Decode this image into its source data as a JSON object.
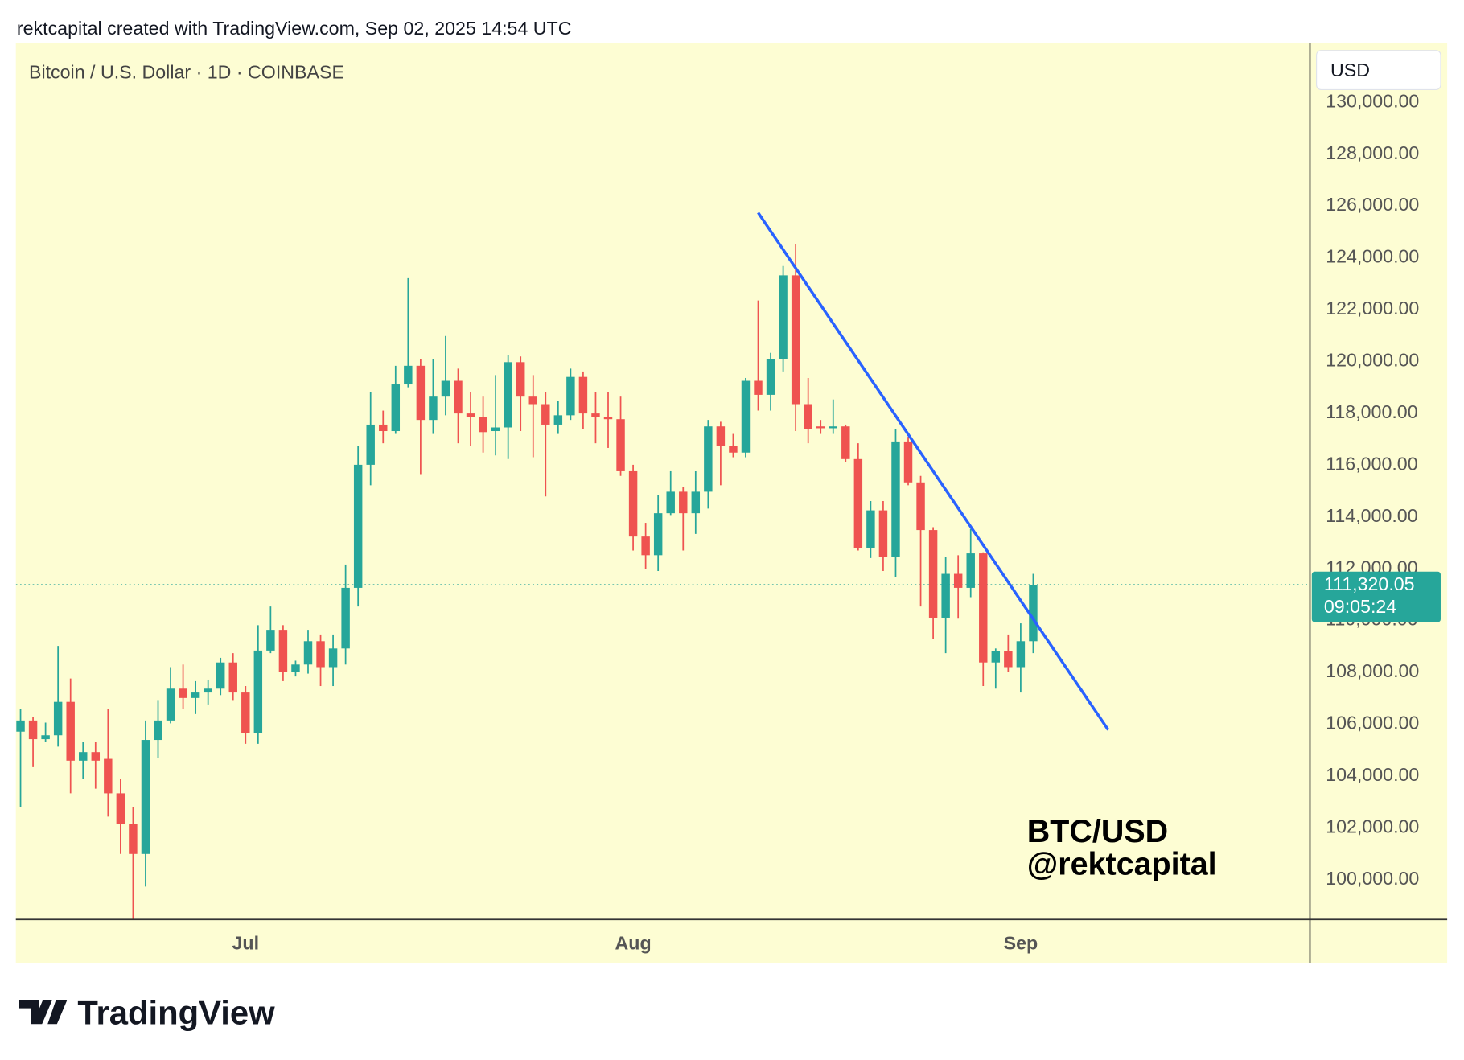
{
  "header": {
    "text": "rektcapital created with TradingView.com, Sep 02, 2025 14:54 UTC"
  },
  "footer": {
    "logo_text": "TradingView"
  },
  "chart_data": {
    "type": "candlestick",
    "title": "Bitcoin / U.S. Dollar · 1D · COINBASE",
    "currency": "USD",
    "watermark": [
      "BTC/USD",
      "@rektcapital"
    ],
    "categories": [
      null,
      null,
      null,
      null,
      null,
      null,
      null,
      null,
      null,
      null,
      null,
      null,
      null,
      null,
      null,
      null,
      null,
      null,
      "Jul",
      null,
      null,
      null,
      null,
      null,
      null,
      null,
      null,
      null,
      null,
      null,
      null,
      null,
      null,
      null,
      null,
      null,
      null,
      null,
      null,
      null,
      null,
      null,
      null,
      null,
      null,
      null,
      null,
      null,
      null,
      "Aug",
      null,
      null,
      null,
      null,
      null,
      null,
      null,
      null,
      null,
      null,
      null,
      null,
      null,
      null,
      null,
      null,
      null,
      null,
      null,
      null,
      null,
      null,
      null,
      null,
      null,
      null,
      null,
      null,
      null,
      null,
      "Sep",
      null
    ],
    "open": [
      105650,
      106080,
      105360,
      105510,
      106800,
      104530,
      104860,
      104600,
      103270,
      102080,
      100930,
      105330,
      106080,
      107310,
      106950,
      107160,
      107310,
      108320,
      107160,
      105610,
      108780,
      109580,
      107960,
      108240,
      109140,
      108140,
      108860,
      111200,
      115950,
      117500,
      117250,
      119050,
      119770,
      117680,
      118580,
      119190,
      117930,
      117790,
      117250,
      117390,
      119910,
      118580,
      118290,
      117500,
      117860,
      119340,
      117930,
      117790,
      117710,
      115700,
      113180,
      112460,
      114080,
      114910,
      114080,
      114910,
      117430,
      116670,
      116420,
      119190,
      118650,
      120020,
      123260,
      118290,
      117430,
      117360,
      117430,
      116170,
      112750,
      114190,
      112390,
      116850,
      115270,
      113430,
      110050,
      111740,
      111200,
      112530,
      108320,
      108750,
      108140,
      109140
    ],
    "high": [
      106510,
      106230,
      106000,
      108960,
      107700,
      105250,
      105250,
      106510,
      103810,
      102730,
      106080,
      106870,
      108140,
      108240,
      107600,
      107660,
      108500,
      108680,
      107410,
      109760,
      110480,
      109760,
      108390,
      109580,
      109400,
      109400,
      112100,
      116670,
      118760,
      118040,
      119770,
      123150,
      120020,
      120020,
      120920,
      119660,
      118760,
      118580,
      119410,
      120200,
      120130,
      119410,
      118760,
      118400,
      119660,
      119550,
      118760,
      118760,
      118580,
      115950,
      113710,
      114800,
      115700,
      115090,
      115700,
      117680,
      117610,
      117140,
      119300,
      122290,
      120270,
      123620,
      124450,
      119300,
      117680,
      118470,
      117500,
      116780,
      114550,
      114550,
      117320,
      117030,
      115520,
      113540,
      112390,
      112460,
      113470,
      112570,
      108860,
      109400,
      109830,
      111740
    ],
    "low": [
      102730,
      104280,
      105250,
      105070,
      103270,
      103810,
      103450,
      102370,
      100930,
      98420,
      99670,
      104640,
      105970,
      106510,
      106330,
      106700,
      107060,
      106870,
      105180,
      105180,
      108680,
      107600,
      107780,
      107890,
      107410,
      107410,
      108240,
      110480,
      115160,
      116780,
      117140,
      118940,
      115590,
      117140,
      117860,
      116780,
      116670,
      116420,
      116310,
      116170,
      117250,
      116240,
      114730,
      117140,
      117680,
      117320,
      116780,
      116600,
      115520,
      112640,
      111920,
      111850,
      114010,
      112640,
      113280,
      114260,
      115160,
      116240,
      116240,
      118040,
      118040,
      119550,
      117250,
      116780,
      117140,
      117140,
      116060,
      112640,
      112350,
      111850,
      111630,
      115160,
      110480,
      109220,
      108680,
      110010,
      110840,
      107410,
      107310,
      107960,
      107160,
      108680
    ],
    "close": [
      106080,
      105360,
      105510,
      106800,
      104530,
      104860,
      104530,
      103270,
      102080,
      100930,
      105330,
      106080,
      107310,
      106950,
      107160,
      107310,
      108320,
      107160,
      105610,
      108780,
      109580,
      107960,
      108240,
      109140,
      108140,
      108860,
      111200,
      115950,
      117500,
      117250,
      119050,
      119770,
      117680,
      118580,
      119190,
      117930,
      117790,
      117210,
      117390,
      119910,
      118580,
      118290,
      117500,
      117860,
      119340,
      117930,
      117790,
      117710,
      115700,
      113180,
      112460,
      114080,
      114910,
      114080,
      114910,
      117430,
      116670,
      116420,
      119190,
      118650,
      120020,
      123260,
      118290,
      117320,
      117360,
      117430,
      116170,
      112750,
      114190,
      112390,
      116850,
      115270,
      113430,
      110050,
      111740,
      111200,
      112530,
      108320,
      108750,
      108140,
      109140,
      111320.05
    ],
    "up_color": "#26a69a",
    "down_color": "#ef5350",
    "last_price": {
      "value": 111320.05,
      "label": "111,320.05",
      "countdown": "09:05:24",
      "color": "#26a69a"
    },
    "trendline": {
      "x": [
        59,
        87
      ],
      "y": [
        125680,
        105720
      ],
      "color": "#2962ff"
    },
    "ylim": [
      98400,
      132230
    ],
    "yticks": [
      {
        "value": 100000,
        "label": "100,000.00"
      },
      {
        "value": 102000,
        "label": "102,000.00"
      },
      {
        "value": 104000,
        "label": "104,000.00"
      },
      {
        "value": 106000,
        "label": "106,000.00"
      },
      {
        "value": 108000,
        "label": "108,000.00"
      },
      {
        "value": 110000,
        "label": "110,000.00"
      },
      {
        "value": 112000,
        "label": "112,000.00"
      },
      {
        "value": 114000,
        "label": "114,000.00"
      },
      {
        "value": 116000,
        "label": "116,000.00"
      },
      {
        "value": 118000,
        "label": "118,000.00"
      },
      {
        "value": 120000,
        "label": "120,000.00"
      },
      {
        "value": 122000,
        "label": "122,000.00"
      },
      {
        "value": 124000,
        "label": "124,000.00"
      },
      {
        "value": 126000,
        "label": "126,000.00"
      },
      {
        "value": 128000,
        "label": "128,000.00"
      },
      {
        "value": 130000,
        "label": "130,000.00"
      }
    ]
  }
}
